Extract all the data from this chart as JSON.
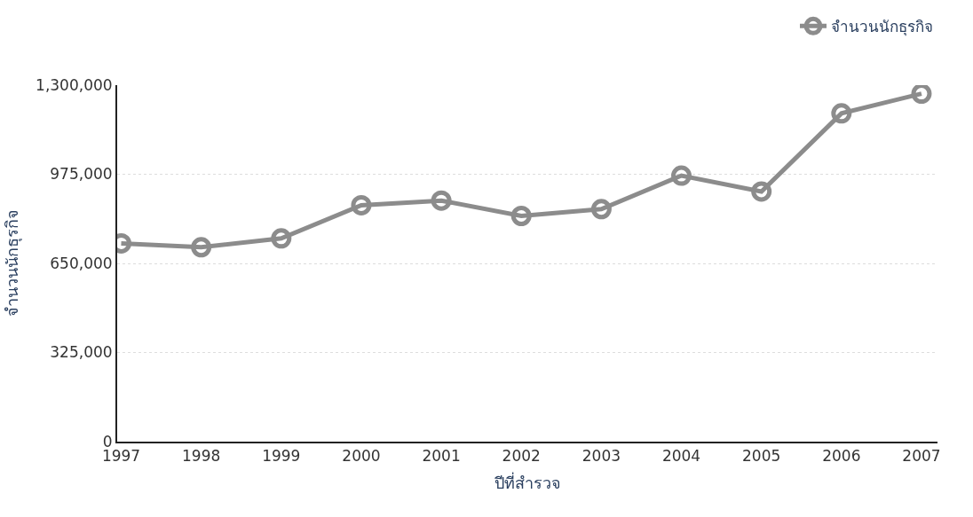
{
  "chart_data": {
    "type": "line",
    "xlabel": "ปีที่สำรวจ",
    "ylabel": "จำนวนนักธุรกิจ",
    "categories": [
      "1997",
      "1998",
      "1999",
      "2000",
      "2001",
      "2002",
      "2003",
      "2004",
      "2005",
      "2006",
      "2007"
    ],
    "series": [
      {
        "name": "จำนวนนักธุรกิจ",
        "color": "#8c8c8c",
        "values": [
          723000,
          709000,
          741000,
          862000,
          879000,
          823000,
          848000,
          970000,
          912000,
          1197000,
          1269000
        ]
      }
    ],
    "ylim": [
      0,
      1300000
    ],
    "yticks": [
      {
        "value": 0,
        "label": "0"
      },
      {
        "value": 325000,
        "label": "325,000"
      },
      {
        "value": 650000,
        "label": "650,000"
      },
      {
        "value": 975000,
        "label": "975,000"
      },
      {
        "value": 1300000,
        "label": "1,300,000"
      }
    ],
    "grid": "y",
    "legend": "top right",
    "marker": "circle",
    "line_style": "solid"
  }
}
